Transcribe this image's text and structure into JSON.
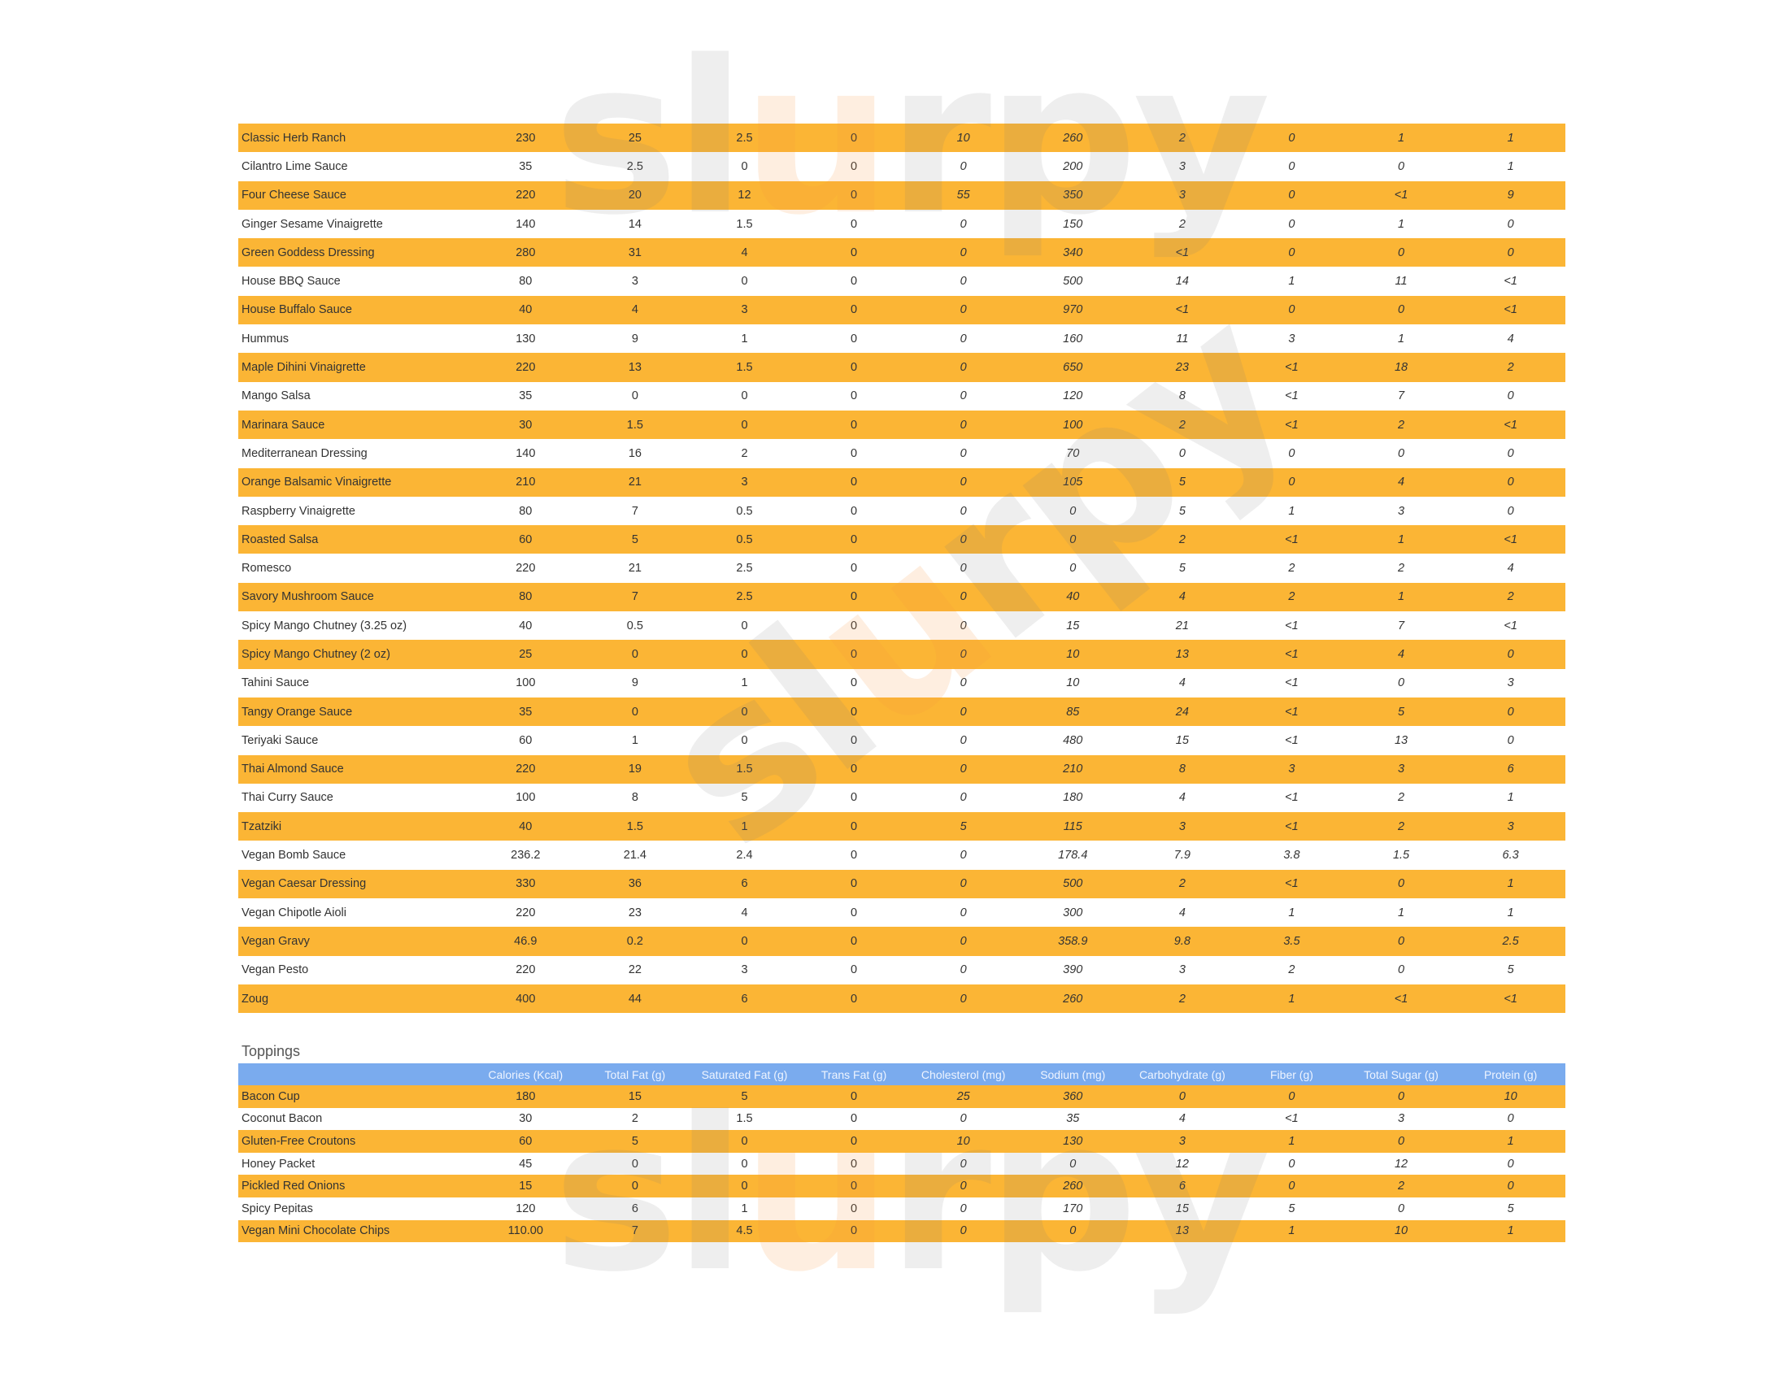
{
  "watermark": {
    "logo_text": "slurpy"
  },
  "colors": {
    "row_highlight": "#FBB535",
    "header_bg": "#7AABEE"
  },
  "columns": [
    "Calories (Kcal)",
    "Total Fat (g)",
    "Saturated Fat (g)",
    "Trans Fat (g)",
    "Cholesterol (mg)",
    "Sodium (mg)",
    "Carbohydrate (g)",
    "Fiber (g)",
    "Total Sugar (g)",
    "Protein (g)"
  ],
  "sauces": [
    [
      "Classic Herb Ranch",
      "230",
      "25",
      "2.5",
      "0",
      "10",
      "260",
      "2",
      "0",
      "1",
      "1"
    ],
    [
      "Cilantro Lime Sauce",
      "35",
      "2.5",
      "0",
      "0",
      "0",
      "200",
      "3",
      "0",
      "0",
      "1"
    ],
    [
      "Four Cheese Sauce",
      "220",
      "20",
      "12",
      "0",
      "55",
      "350",
      "3",
      "0",
      "<1",
      "9"
    ],
    [
      "Ginger Sesame Vinaigrette",
      "140",
      "14",
      "1.5",
      "0",
      "0",
      "150",
      "2",
      "0",
      "1",
      "0"
    ],
    [
      "Green Goddess Dressing",
      "280",
      "31",
      "4",
      "0",
      "0",
      "340",
      "<1",
      "0",
      "0",
      "0"
    ],
    [
      "House BBQ Sauce",
      "80",
      "3",
      "0",
      "0",
      "0",
      "500",
      "14",
      "1",
      "11",
      "<1"
    ],
    [
      "House Buffalo Sauce",
      "40",
      "4",
      "3",
      "0",
      "0",
      "970",
      "<1",
      "0",
      "0",
      "<1"
    ],
    [
      "Hummus",
      "130",
      "9",
      "1",
      "0",
      "0",
      "160",
      "11",
      "3",
      "1",
      "4"
    ],
    [
      "Maple Dihini Vinaigrette",
      "220",
      "13",
      "1.5",
      "0",
      "0",
      "650",
      "23",
      "<1",
      "18",
      "2"
    ],
    [
      "Mango Salsa",
      "35",
      "0",
      "0",
      "0",
      "0",
      "120",
      "8",
      "<1",
      "7",
      "0"
    ],
    [
      "Marinara Sauce",
      "30",
      "1.5",
      "0",
      "0",
      "0",
      "100",
      "2",
      "<1",
      "2",
      "<1"
    ],
    [
      "Mediterranean Dressing",
      "140",
      "16",
      "2",
      "0",
      "0",
      "70",
      "0",
      "0",
      "0",
      "0"
    ],
    [
      "Orange Balsamic Vinaigrette",
      "210",
      "21",
      "3",
      "0",
      "0",
      "105",
      "5",
      "0",
      "4",
      "0"
    ],
    [
      "Raspberry Vinaigrette",
      "80",
      "7",
      "0.5",
      "0",
      "0",
      "0",
      "5",
      "1",
      "3",
      "0"
    ],
    [
      "Roasted Salsa",
      "60",
      "5",
      "0.5",
      "0",
      "0",
      "0",
      "2",
      "<1",
      "1",
      "<1"
    ],
    [
      "Romesco",
      "220",
      "21",
      "2.5",
      "0",
      "0",
      "0",
      "5",
      "2",
      "2",
      "4"
    ],
    [
      "Savory Mushroom Sauce",
      "80",
      "7",
      "2.5",
      "0",
      "0",
      "40",
      "4",
      "2",
      "1",
      "2"
    ],
    [
      "Spicy Mango Chutney (3.25 oz)",
      "40",
      "0.5",
      "0",
      "0",
      "0",
      "15",
      "21",
      "<1",
      "7",
      "<1"
    ],
    [
      "Spicy Mango Chutney (2 oz)",
      "25",
      "0",
      "0",
      "0",
      "0",
      "10",
      "13",
      "<1",
      "4",
      "0"
    ],
    [
      "Tahini Sauce",
      "100",
      "9",
      "1",
      "0",
      "0",
      "10",
      "4",
      "<1",
      "0",
      "3"
    ],
    [
      "Tangy Orange Sauce",
      "35",
      "0",
      "0",
      "0",
      "0",
      "85",
      "24",
      "<1",
      "5",
      "0"
    ],
    [
      "Teriyaki Sauce",
      "60",
      "1",
      "0",
      "0",
      "0",
      "480",
      "15",
      "<1",
      "13",
      "0"
    ],
    [
      "Thai Almond Sauce",
      "220",
      "19",
      "1.5",
      "0",
      "0",
      "210",
      "8",
      "3",
      "3",
      "6"
    ],
    [
      "Thai Curry Sauce",
      "100",
      "8",
      "5",
      "0",
      "0",
      "180",
      "4",
      "<1",
      "2",
      "1"
    ],
    [
      "Tzatziki",
      "40",
      "1.5",
      "1",
      "0",
      "5",
      "115",
      "3",
      "<1",
      "2",
      "3"
    ],
    [
      "Vegan Bomb Sauce",
      "236.2",
      "21.4",
      "2.4",
      "0",
      "0",
      "178.4",
      "7.9",
      "3.8",
      "1.5",
      "6.3"
    ],
    [
      "Vegan Caesar Dressing",
      "330",
      "36",
      "6",
      "0",
      "0",
      "500",
      "2",
      "<1",
      "0",
      "1"
    ],
    [
      "Vegan Chipotle Aioli",
      "220",
      "23",
      "4",
      "0",
      "0",
      "300",
      "4",
      "1",
      "1",
      "1"
    ],
    [
      "Vegan Gravy",
      "46.9",
      "0.2",
      "0",
      "0",
      "0",
      "358.9",
      "9.8",
      "3.5",
      "0",
      "2.5"
    ],
    [
      "Vegan Pesto",
      "220",
      "22",
      "3",
      "0",
      "0",
      "390",
      "3",
      "2",
      "0",
      "5"
    ],
    [
      "Zoug",
      "400",
      "44",
      "6",
      "0",
      "0",
      "260",
      "2",
      "1",
      "<1",
      "<1"
    ]
  ],
  "toppings": {
    "title": "Toppings",
    "rows": [
      [
        "Bacon Cup",
        "180",
        "15",
        "5",
        "0",
        "25",
        "360",
        "0",
        "0",
        "0",
        "10"
      ],
      [
        "Coconut Bacon",
        "30",
        "2",
        "1.5",
        "0",
        "0",
        "35",
        "4",
        "<1",
        "3",
        "0"
      ],
      [
        "Gluten-Free Croutons",
        "60",
        "5",
        "0",
        "0",
        "10",
        "130",
        "3",
        "1",
        "0",
        "1"
      ],
      [
        "Honey Packet",
        "45",
        "0",
        "0",
        "0",
        "0",
        "0",
        "12",
        "0",
        "12",
        "0"
      ],
      [
        "Pickled Red Onions",
        "15",
        "0",
        "0",
        "0",
        "0",
        "260",
        "6",
        "0",
        "2",
        "0"
      ],
      [
        "Spicy Pepitas",
        "120",
        "6",
        "1",
        "0",
        "0",
        "170",
        "15",
        "5",
        "0",
        "5"
      ],
      [
        "Vegan Mini Chocolate Chips",
        "110.00",
        "7",
        "4.5",
        "0",
        "0",
        "0",
        "13",
        "1",
        "10",
        "1"
      ]
    ]
  }
}
